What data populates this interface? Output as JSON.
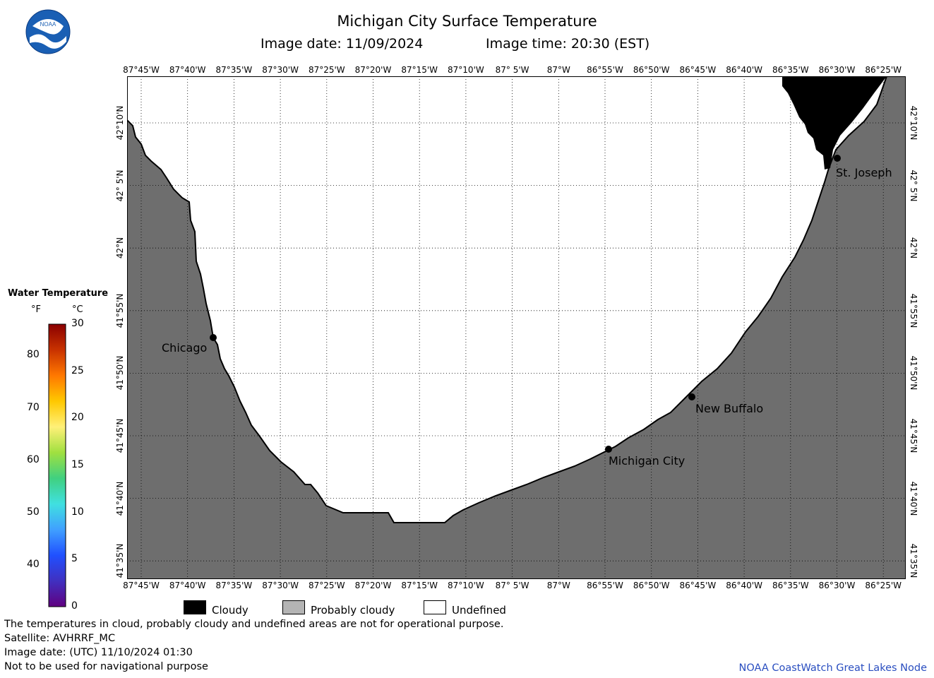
{
  "header": {
    "title": "Michigan City Surface Temperature",
    "image_date": "Image date: 11/09/2024",
    "image_time": "Image time: 20:30 (EST)"
  },
  "logo": {
    "text": "NOAA",
    "icon": "noaa-logo-icon"
  },
  "map": {
    "lon_labels": [
      "87°45'W",
      "87°40'W",
      "87°35'W",
      "87°30'W",
      "87°25'W",
      "87°20'W",
      "87°15'W",
      "87°10'W",
      "87° 5'W",
      "87°W",
      "86°55'W",
      "86°50'W",
      "86°45'W",
      "86°40'W",
      "86°35'W",
      "86°30'W",
      "86°25'W"
    ],
    "lat_labels": [
      "42°10'N",
      "42° 5'N",
      "42°N",
      "41°55'N",
      "41°50'N",
      "41°45'N",
      "41°40'N",
      "41°35'N"
    ],
    "cities": [
      {
        "name": "Chicago"
      },
      {
        "name": "St. Joseph"
      },
      {
        "name": "New Buffalo"
      },
      {
        "name": "Michigan City"
      }
    ],
    "colors": {
      "land": "#6e6e6e",
      "water_undefined": "#ffffff",
      "cloudy": "#000000",
      "shoreline": "#000000"
    }
  },
  "legend": {
    "title": "Water Temperature",
    "unit_f": "°F",
    "unit_c": "°C",
    "f_ticks": [
      "80",
      "70",
      "60",
      "50",
      "40"
    ],
    "c_ticks": [
      "30",
      "25",
      "20",
      "15",
      "10",
      "5",
      "0"
    ],
    "colorbar": [
      "#8a0000",
      "#c83200",
      "#ff7800",
      "#ffc800",
      "#fff078",
      "#a0e040",
      "#40d080",
      "#40e0e0",
      "#40a0ff",
      "#2050ff",
      "#4030c0",
      "#600080"
    ]
  },
  "key": {
    "cloudy": "Cloudy",
    "probably_cloudy": "Probably cloudy",
    "undefined": "Undefined",
    "cloudy_color": "#000000",
    "probably_cloudy_color": "#b4b4b4",
    "undefined_color": "#ffffff"
  },
  "notes": {
    "disclaimer": "The temperatures in cloud, probably cloudy and undefined areas are not for operational purpose.",
    "satellite": "Satellite: AVHRRF_MC",
    "utc_date": "Image date: (UTC) 11/10/2024  01:30",
    "navigation": "Not to be used for navigational purpose",
    "credit": "NOAA CoastWatch Great Lakes Node"
  }
}
